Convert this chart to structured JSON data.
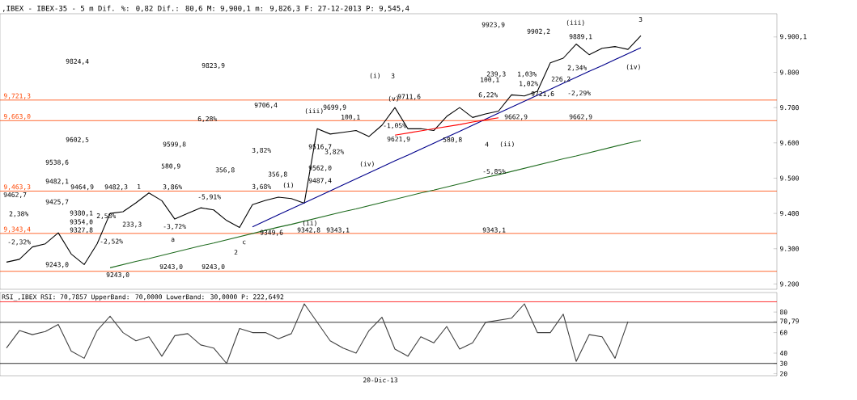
{
  "chart_data": [
    {
      "type": "line",
      "title": ",IBEX - IBEX-35 - 5 m Dif. %: 0,82 Dif.: 80,6 M: 9,900,1 m: 9,826,3 F: 27-12-2013 P: 9,545,4",
      "categories": [
        null,
        null,
        null,
        null,
        null,
        null,
        null,
        null,
        null,
        null,
        null,
        null,
        null,
        null,
        null,
        null,
        null,
        null,
        null,
        null,
        null,
        null,
        null,
        null,
        null,
        null,
        null,
        null,
        null,
        null,
        null,
        null,
        null,
        null,
        null,
        null,
        null,
        null,
        null,
        null,
        null,
        null,
        null,
        null,
        null,
        null,
        null,
        null,
        null,
        null
      ],
      "ylim": [
        9185,
        9966
      ],
      "tick_labels": "y",
      "yticks": [
        {
          "value": 9200,
          "label": "9.200"
        },
        {
          "value": 9300,
          "label": "9.300"
        },
        {
          "value": 9400,
          "label": "9.400"
        },
        {
          "value": 9500,
          "label": "9.500"
        },
        {
          "value": 9600,
          "label": "9.600"
        },
        {
          "value": 9700,
          "label": "9.700"
        },
        {
          "value": 9800,
          "label": "9.800"
        },
        {
          "value": 9900.1,
          "label": "9.900,1"
        }
      ],
      "series": [
        {
          "color": "#000000",
          "values": [
            9262,
            9270,
            9305,
            9314,
            9345,
            9285,
            9255,
            9314,
            9400,
            9405,
            9430,
            9458,
            9436,
            9384,
            9400,
            9416,
            9410,
            9380,
            9360,
            9425,
            9437,
            9446,
            9442,
            9429,
            9640,
            9625,
            9630,
            9635,
            9618,
            9650,
            9700,
            9640,
            9640,
            9635,
            9675,
            9700,
            9672,
            9682,
            9690,
            9736,
            9733,
            9746,
            9827,
            9840,
            9880,
            9850,
            9868,
            9873,
            9865,
            9904
          ]
        },
        {
          "color": "#00008b",
          "values": [
            null,
            null,
            null,
            null,
            null,
            null,
            null,
            null,
            null,
            null,
            null,
            null,
            null,
            null,
            null,
            null,
            null,
            null,
            null,
            9362,
            9379,
            9396,
            9413,
            9430,
            9447,
            9464,
            9481,
            9498,
            9515,
            9532,
            9549,
            9565,
            9582,
            9599,
            9616,
            9633,
            9650,
            9667,
            9684,
            9701,
            9718,
            9735,
            9752,
            9769,
            9786,
            9803,
            9819,
            9836,
            9853,
            9870
          ]
        },
        {
          "color": "#1e6b1e",
          "values": [
            null,
            null,
            null,
            null,
            null,
            null,
            null,
            null,
            9246,
            9255,
            9264,
            9272,
            9281,
            9290,
            9299,
            9308,
            9316,
            9325,
            9334,
            9343,
            9352,
            9361,
            9369,
            9378,
            9387,
            9396,
            9405,
            9413,
            9422,
            9431,
            9440,
            9449,
            9458,
            9466,
            9475,
            9484,
            9493,
            9502,
            9510,
            9519,
            9528,
            9537,
            9546,
            9555,
            9563,
            9572,
            9581,
            9590,
            9599,
            9607
          ]
        },
        {
          "color": "#ff0000",
          "values": [
            null,
            null,
            null,
            null,
            null,
            null,
            null,
            null,
            null,
            null,
            null,
            null,
            null,
            null,
            null,
            null,
            null,
            null,
            null,
            null,
            null,
            null,
            null,
            null,
            null,
            null,
            null,
            null,
            null,
            null,
            9622,
            9628,
            9634,
            9640,
            9646,
            9652,
            9659,
            9665,
            9671,
            null,
            null,
            null,
            null,
            null,
            null,
            null,
            null,
            null,
            null,
            null
          ]
        }
      ],
      "ref_lines": [
        {
          "axis": "y",
          "value": 9721.3,
          "label": "9,721,3",
          "color": "#ff4500"
        },
        {
          "axis": "y",
          "value": 9663.0,
          "label": "9,663,0",
          "color": "#ff4500"
        },
        {
          "axis": "y",
          "value": 9463.3,
          "label": "9,463,3",
          "color": "#ff4500"
        },
        {
          "axis": "y",
          "value": 9343.4,
          "label": "9,343,4",
          "color": "#ff4500"
        },
        {
          "axis": "y",
          "value": 9236,
          "color": "#ff4500"
        }
      ],
      "annotations": [
        "9824,4",
        "9823,9",
        "9706,4",
        "6,28%",
        "9602,5",
        "9599,8",
        "3,82%",
        "9538,6",
        "580,9",
        "356,8",
        "9482,1",
        "9464,9",
        "9482,3",
        "1",
        "3,86%",
        "9462,7",
        "9425,7",
        "3,68%",
        "(i)",
        "-5,91%",
        "9380,1",
        "2,58%",
        "9354,0",
        "9327,8",
        "2,38%",
        "233,3",
        "-3,72%",
        "-2,52%",
        "a",
        "9349,6",
        "c",
        "2",
        "-2,32%",
        "9243,0",
        "9243,0",
        "9243,0",
        "9243,0",
        "(ii)",
        "9342,8",
        "9343,1",
        "9343,1",
        "-5,85%",
        "9487,4",
        "356,8",
        "9562,0",
        "9516,7",
        "3,82%",
        "(iv)",
        "(iii)",
        "9699,9",
        "100,1",
        "(i)",
        "3",
        "(v)",
        "9711,6",
        "-1,05%",
        "9621,9",
        "580,8",
        "4",
        "(ii)",
        "9923,9",
        "9902,2",
        "(iii)",
        "9889,1",
        "3",
        "(iv)",
        "2,34%",
        "-2,29%",
        "9662,9",
        "9662,9",
        "100,1",
        "239,3",
        "1,03%",
        "226,2",
        "1,02%",
        "9721,6",
        "6,22%"
      ]
    },
    {
      "type": "line",
      "title": "RSI_,IBEX RSI: 70,7857 UpperBand: 70,0000 LowerBand: 30,0000 P: 222,6492",
      "categories": [
        null,
        null,
        null,
        null,
        null,
        null,
        null,
        null,
        null,
        null,
        null,
        null,
        null,
        null,
        null,
        null,
        null,
        null,
        null,
        null,
        null,
        null,
        null,
        null,
        null,
        null,
        null,
        null,
        null,
        null,
        null,
        null,
        null,
        null,
        null,
        null,
        null,
        null,
        null,
        null,
        null,
        null,
        null,
        null,
        null,
        null,
        null,
        null,
        null
      ],
      "ylim": [
        18,
        99
      ],
      "tick_labels": "y",
      "yticks": [
        20,
        30,
        40,
        60,
        {
          "value": 70.79,
          "label": "70,79"
        },
        80
      ],
      "series": [
        {
          "color": "#404040",
          "values": [
            45,
            62,
            58,
            61,
            68,
            42,
            35,
            62,
            76,
            60,
            52,
            56,
            37,
            57,
            59,
            48,
            45,
            30,
            64,
            60,
            60,
            54,
            59,
            88,
            70,
            52,
            45,
            40,
            62,
            75,
            44,
            37,
            56,
            50,
            66,
            44,
            50,
            70,
            72,
            74,
            88,
            60,
            60,
            78,
            32,
            58,
            56,
            35,
            70.79
          ]
        }
      ],
      "ref_lines": [
        {
          "axis": "y",
          "value": 70,
          "color": "#000000"
        },
        {
          "axis": "y",
          "value": 30,
          "color": "#000000"
        },
        {
          "axis": "y",
          "value": 90,
          "color": "#ff0000"
        }
      ],
      "annotations": [
        "20-Dic-13"
      ]
    }
  ]
}
